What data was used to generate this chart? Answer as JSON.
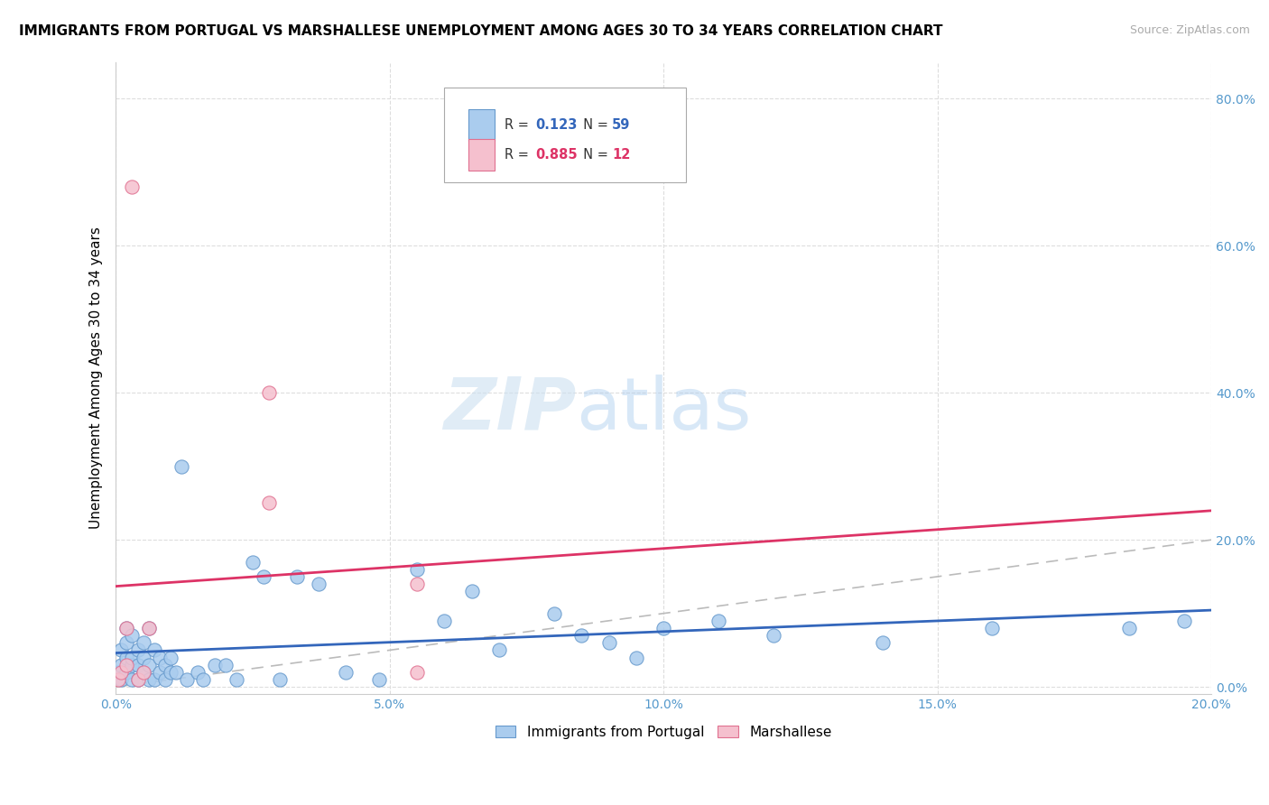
{
  "title": "IMMIGRANTS FROM PORTUGAL VS MARSHALLESE UNEMPLOYMENT AMONG AGES 30 TO 34 YEARS CORRELATION CHART",
  "source": "Source: ZipAtlas.com",
  "ylabel": "Unemployment Among Ages 30 to 34 years",
  "xlim": [
    0.0,
    0.2
  ],
  "ylim": [
    -0.01,
    0.85
  ],
  "xticks": [
    0.0,
    0.05,
    0.1,
    0.15,
    0.2
  ],
  "yticks": [
    0.0,
    0.2,
    0.4,
    0.6,
    0.8
  ],
  "xtick_labels": [
    "0.0%",
    "5.0%",
    "10.0%",
    "15.0%",
    "20.0%"
  ],
  "ytick_labels": [
    "0.0%",
    "20.0%",
    "40.0%",
    "60.0%",
    "80.0%"
  ],
  "portugal_color": "#aaccee",
  "portugal_edge_color": "#6699cc",
  "marshallese_color": "#f5c0ce",
  "marshallese_edge_color": "#e07090",
  "trend_portugal_color": "#3366bb",
  "trend_marshallese_color": "#dd3366",
  "legend_r_val_portugal": "0.123",
  "legend_n_val_portugal": "59",
  "legend_r_val_marshallese": "0.885",
  "legend_n_val_marshallese": "12",
  "watermark_zip": "ZIP",
  "watermark_atlas": "atlas",
  "background_color": "#ffffff",
  "grid_color": "#dddddd",
  "title_fontsize": 11,
  "axis_label_fontsize": 11,
  "tick_fontsize": 10,
  "tick_color": "#5599cc",
  "portugal_x": [
    0.0005,
    0.001,
    0.001,
    0.001,
    0.002,
    0.002,
    0.002,
    0.002,
    0.003,
    0.003,
    0.003,
    0.003,
    0.004,
    0.004,
    0.004,
    0.005,
    0.005,
    0.005,
    0.006,
    0.006,
    0.006,
    0.007,
    0.007,
    0.008,
    0.008,
    0.009,
    0.009,
    0.01,
    0.01,
    0.011,
    0.012,
    0.013,
    0.015,
    0.016,
    0.018,
    0.02,
    0.022,
    0.025,
    0.027,
    0.03,
    0.033,
    0.037,
    0.042,
    0.048,
    0.055,
    0.06,
    0.065,
    0.07,
    0.08,
    0.085,
    0.09,
    0.095,
    0.1,
    0.11,
    0.12,
    0.14,
    0.16,
    0.185,
    0.195
  ],
  "portugal_y": [
    0.02,
    0.01,
    0.03,
    0.05,
    0.02,
    0.04,
    0.06,
    0.08,
    0.01,
    0.03,
    0.04,
    0.07,
    0.01,
    0.03,
    0.05,
    0.02,
    0.04,
    0.06,
    0.01,
    0.03,
    0.08,
    0.01,
    0.05,
    0.02,
    0.04,
    0.01,
    0.03,
    0.02,
    0.04,
    0.02,
    0.3,
    0.01,
    0.02,
    0.01,
    0.03,
    0.03,
    0.01,
    0.17,
    0.15,
    0.01,
    0.15,
    0.14,
    0.02,
    0.01,
    0.16,
    0.09,
    0.13,
    0.05,
    0.1,
    0.07,
    0.06,
    0.04,
    0.08,
    0.09,
    0.07,
    0.06,
    0.08,
    0.08,
    0.09
  ],
  "marshallese_x": [
    0.0005,
    0.001,
    0.002,
    0.002,
    0.003,
    0.004,
    0.005,
    0.006,
    0.028,
    0.028,
    0.055,
    0.055
  ],
  "marshallese_y": [
    0.01,
    0.02,
    0.03,
    0.08,
    0.68,
    0.01,
    0.02,
    0.08,
    0.25,
    0.4,
    0.02,
    0.14
  ],
  "ref_line_color": "#bbbbbb",
  "ref_line_dash": [
    8,
    5
  ]
}
